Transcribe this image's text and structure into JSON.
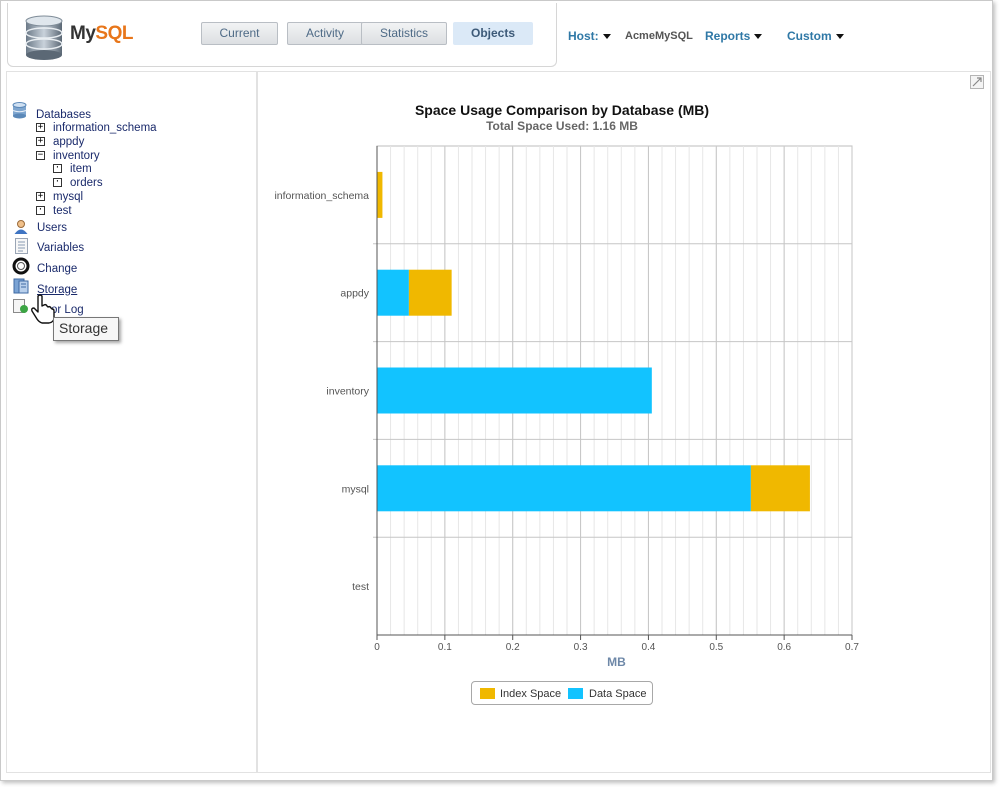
{
  "brand": {
    "part1": "My",
    "part2": "SQL"
  },
  "tabs": [
    {
      "label": "Current",
      "active": false
    },
    {
      "label": "Activity",
      "active": false
    },
    {
      "label": "Statistics",
      "active": false
    },
    {
      "label": "Objects",
      "active": true
    }
  ],
  "host_bar": {
    "host_label": "Host:",
    "host_value": "AcmeMySQL",
    "reports_label": "Reports",
    "custom_label": "Custom"
  },
  "sidebar": {
    "databases_label": "Databases",
    "tree": [
      {
        "label": "information_schema",
        "toggle": "+"
      },
      {
        "label": "appdy",
        "toggle": "+"
      },
      {
        "label": "inventory",
        "toggle": "−"
      },
      {
        "label": "item",
        "toggle": "·"
      },
      {
        "label": "orders",
        "toggle": "·"
      },
      {
        "label": "mysql",
        "toggle": "+"
      },
      {
        "label": "test",
        "toggle": "·"
      }
    ],
    "items": [
      {
        "label": "Users",
        "icon": "user-icon"
      },
      {
        "label": "Variables",
        "icon": "document-icon"
      },
      {
        "label": "Change",
        "icon": "ring-icon"
      },
      {
        "label": "Storage",
        "icon": "storage-icon"
      },
      {
        "label": "or Log",
        "icon": "error-log-icon"
      }
    ],
    "tooltip": "Storage"
  },
  "colors": {
    "index_space": "#f0b800",
    "data_space": "#12c3ff",
    "accent": "#2f78a6",
    "brand_orange": "#e8761a"
  },
  "chart_data": {
    "type": "bar",
    "orientation": "horizontal",
    "stacked": true,
    "title": "Space Usage Comparison by Database (MB)",
    "subtitle": "Total Space Used: 1.16 MB",
    "categories": [
      "information_schema",
      "appdy",
      "inventory",
      "mysql",
      "test"
    ],
    "series": [
      {
        "name": "Data Space",
        "color": "#12c3ff",
        "values": [
          0,
          0.047,
          0.405,
          0.551,
          0
        ]
      },
      {
        "name": "Index Space",
        "color": "#f0b800",
        "values": [
          0.008,
          0.063,
          0,
          0.087,
          0
        ]
      }
    ],
    "xlabel": "MB",
    "xlim": [
      0,
      0.7
    ],
    "xticks": [
      "0",
      "0.1",
      "0.2",
      "0.3",
      "0.4",
      "0.5",
      "0.6",
      "0.7"
    ],
    "grid": true,
    "legend": {
      "position": "bottom-center",
      "items": [
        {
          "label": "Index Space",
          "color": "#f0b800"
        },
        {
          "label": "Data Space",
          "color": "#12c3ff"
        }
      ]
    }
  }
}
